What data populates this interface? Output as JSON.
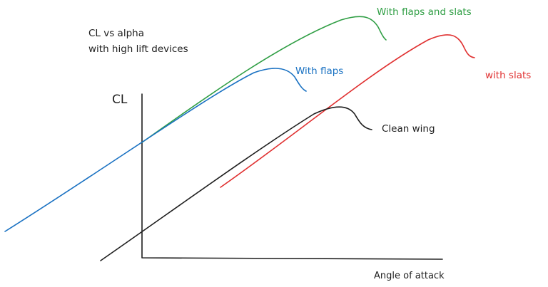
{
  "title_lines": [
    "CL vs alpha",
    "with high lift devices"
  ],
  "axes": {
    "y_label": "CL",
    "x_label": "Angle of attack"
  },
  "curves": [
    {
      "id": "clean",
      "label": "Clean wing",
      "color": "#1e1e1e"
    },
    {
      "id": "flaps",
      "label": "With flaps",
      "color": "#1971c2"
    },
    {
      "id": "slats",
      "label": "with slats",
      "color": "#e03131"
    },
    {
      "id": "flaps-slats",
      "label": "With flaps and slats",
      "color": "#2f9e44"
    }
  ]
}
